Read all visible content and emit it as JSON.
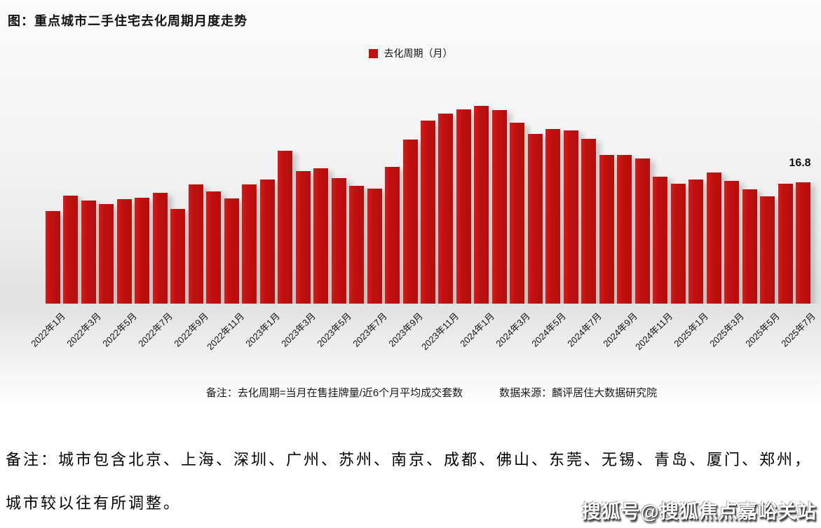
{
  "title": "图：重点城市二手住宅去化周期月度走势",
  "legend": {
    "label": "去化周期（月）",
    "color": "#c01111"
  },
  "value_label": "16.8",
  "footnote": {
    "note": "备注：去化周期=当月在售挂牌量/近6个月平均成交套数",
    "source": "数据来源：麟评居住大数据研究院"
  },
  "bottom_note": {
    "line1": "备注：城市包含北京、上海、深圳、广州、苏州、南京、成都、佛山、东莞、无锡、青岛、厦门、郑州，",
    "line2": "城市较以往有所调整。"
  },
  "watermark": "搜狐号@搜狐焦点嘉峪关站",
  "chart_data": {
    "type": "bar",
    "title": "图：重点城市二手住宅去化周期月度走势",
    "series_name": "去化周期（月）",
    "bar_color": "#c01111",
    "ylim": [
      0,
      30
    ],
    "grid": false,
    "legend_position": "top-center",
    "categories": [
      "2022年1月",
      "2022年2月",
      "2022年3月",
      "2022年4月",
      "2022年5月",
      "2022年6月",
      "2022年7月",
      "2022年8月",
      "2022年9月",
      "2022年10月",
      "2022年11月",
      "2022年12月",
      "2023年1月",
      "2023年2月",
      "2023年3月",
      "2023年4月",
      "2023年5月",
      "2023年6月",
      "2023年7月",
      "2023年8月",
      "2023年9月",
      "2023年10月",
      "2023年11月",
      "2023年12月",
      "2024年1月",
      "2024年2月",
      "2024年3月",
      "2024年4月",
      "2024年5月",
      "2024年6月",
      "2024年7月",
      "2024年8月",
      "2024年9月",
      "2024年10月",
      "2024年11月",
      "2024年12月",
      "2025年1月",
      "2025年2月",
      "2025年3月",
      "2025年4月",
      "2025年5月",
      "2025年6月",
      "2025年7月"
    ],
    "values": [
      12.8,
      15.0,
      14.3,
      13.8,
      14.5,
      14.7,
      15.3,
      13.1,
      16.5,
      15.5,
      14.6,
      16.5,
      17.2,
      21.2,
      18.4,
      18.7,
      17.4,
      16.3,
      15.9,
      18.9,
      22.7,
      25.3,
      26.3,
      26.9,
      27.4,
      26.8,
      25.1,
      23.5,
      24.2,
      24.0,
      22.8,
      20.6,
      20.6,
      20.1,
      17.6,
      16.6,
      17.2,
      18.2,
      17.0,
      15.8,
      14.9,
      16.6,
      16.8
    ],
    "x_tick_labels": [
      "2022年1月",
      "2022年3月",
      "2022年5月",
      "2022年7月",
      "2022年9月",
      "2022年11月",
      "2023年1月",
      "2023年3月",
      "2023年5月",
      "2023年7月",
      "2023年9月",
      "2023年11月",
      "2024年1月",
      "2024年3月",
      "2024年5月",
      "2024年7月",
      "2024年9月",
      "2024年11月",
      "2025年1月",
      "2025年3月",
      "2025年5月",
      "2025年7月"
    ],
    "annotation": {
      "text": "16.8",
      "category": "2025年7月"
    }
  }
}
